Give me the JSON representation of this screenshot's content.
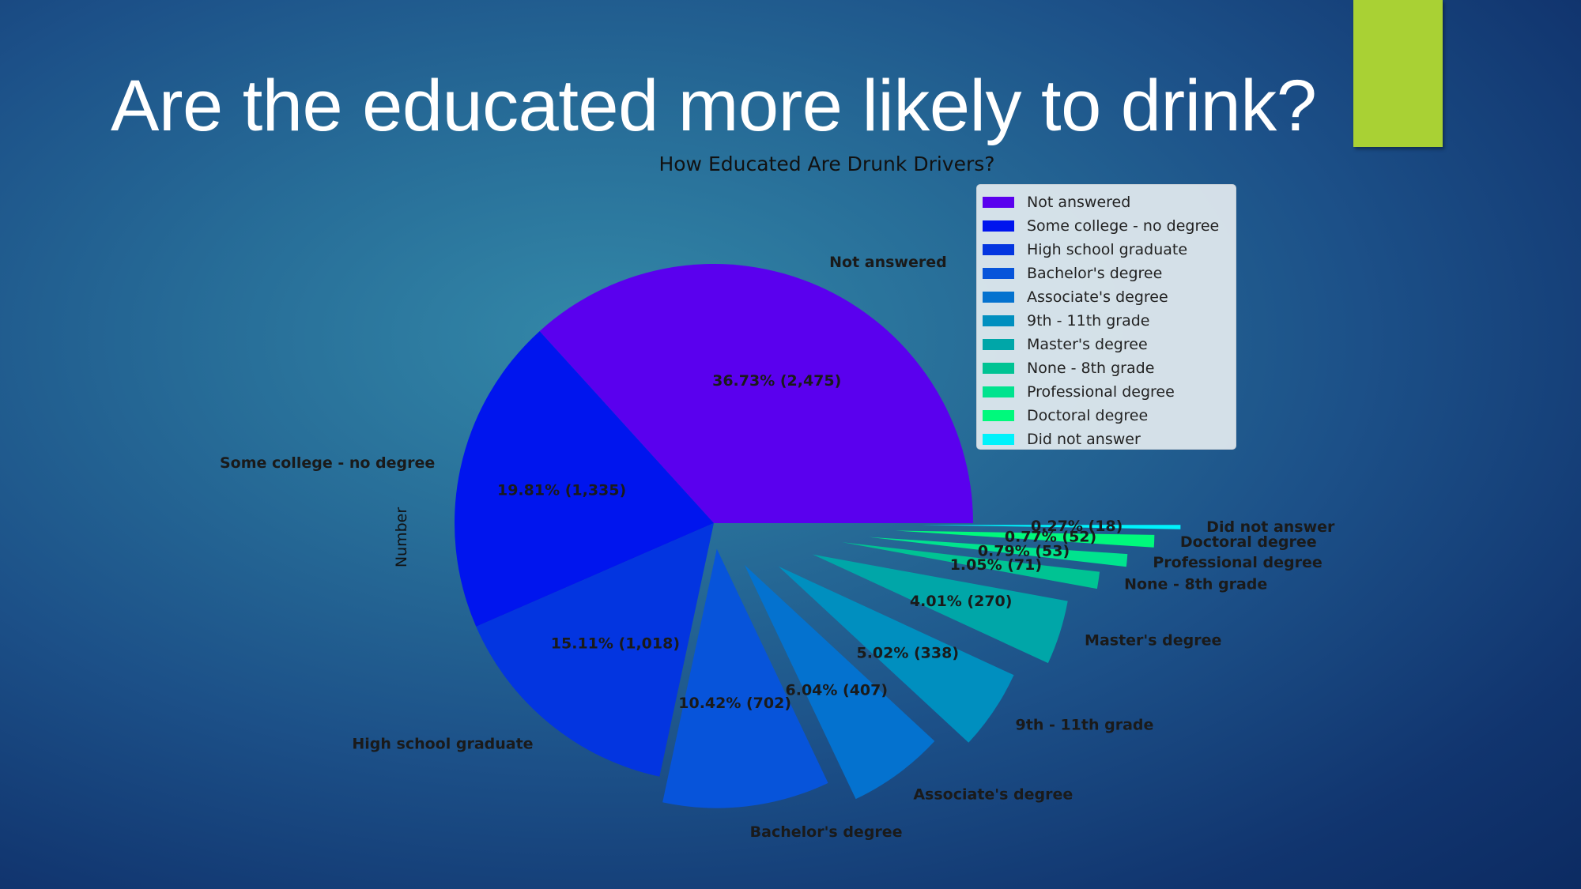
{
  "slide": {
    "title": "Are the educated more likely to drink?",
    "accent_color": "#a9d134"
  },
  "chart_data": {
    "type": "pie",
    "title": "How Educated Are Drunk Drivers?",
    "ylabel": "Number",
    "legend_position": "upper-right",
    "slices": [
      {
        "label": "Not answered",
        "value": 2475,
        "percent": 36.73,
        "pct_text": "36.73%  (2,475)",
        "color": "#5a00ee"
      },
      {
        "label": "Some college - no degree",
        "value": 1335,
        "percent": 19.81,
        "pct_text": "19.81%  (1,335)",
        "color": "#0015ee"
      },
      {
        "label": "High school graduate",
        "value": 1018,
        "percent": 15.11,
        "pct_text": "15.11%  (1,018)",
        "color": "#0335e0"
      },
      {
        "label": "Bachelor's degree",
        "value": 702,
        "percent": 10.42,
        "pct_text": "10.42%  (702)",
        "color": "#0754da"
      },
      {
        "label": "Associate's degree",
        "value": 407,
        "percent": 6.04,
        "pct_text": "6.04%  (407)",
        "color": "#0472cf"
      },
      {
        "label": "9th - 11th grade",
        "value": 338,
        "percent": 5.02,
        "pct_text": "5.02%  (338)",
        "color": "#008fbf"
      },
      {
        "label": "Master's degree",
        "value": 270,
        "percent": 4.01,
        "pct_text": "4.01%  (270)",
        "color": "#00a6a8"
      },
      {
        "label": "None - 8th grade",
        "value": 71,
        "percent": 1.05,
        "pct_text": "1.05%  (71)",
        "color": "#00c393"
      },
      {
        "label": "Professional degree",
        "value": 53,
        "percent": 0.79,
        "pct_text": "0.79%  (53)",
        "color": "#00e38e"
      },
      {
        "label": "Doctoral degree",
        "value": 52,
        "percent": 0.77,
        "pct_text": "0.77%  (52)",
        "color": "#00f97c"
      },
      {
        "label": "Did not answer",
        "value": 18,
        "percent": 0.27,
        "pct_text": "0.27%  (18)",
        "color": "#00f2fb"
      }
    ]
  }
}
